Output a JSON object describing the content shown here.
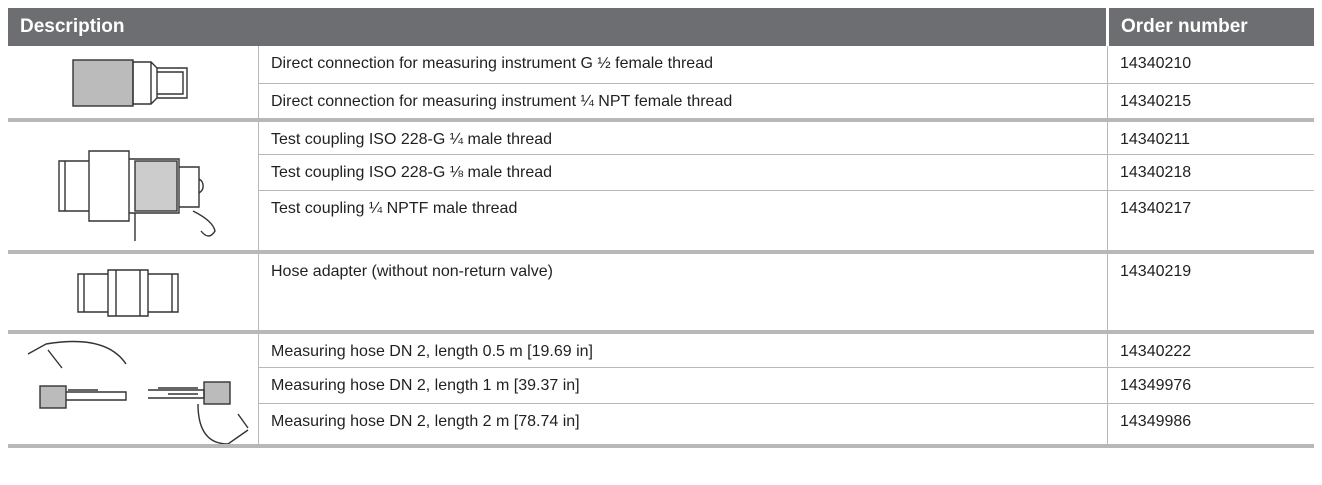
{
  "header": {
    "description": "Description",
    "order_number": "Order number"
  },
  "groups": [
    {
      "rows": [
        [
          "Direct connection for measuring instrument G ½ female thread",
          "14340210"
        ],
        [
          "Direct connection for measuring instrument ¼ NPT female thread",
          "14340215"
        ]
      ]
    },
    {
      "rows": [
        [
          "Test coupling ISO 228-G ¼ male thread",
          "14340211"
        ],
        [
          "Test coupling ISO 228-G ⅛ male thread",
          "14340218"
        ],
        [
          "Test coupling ¼ NPTF male thread",
          "14340217"
        ]
      ]
    },
    {
      "rows": [
        [
          "Hose adapter (without non-return valve)",
          "14340219"
        ]
      ]
    },
    {
      "rows": [
        [
          "Measuring hose DN 2, length 0.5 m [19.69 in]",
          "14340222"
        ],
        [
          "Measuring hose DN 2, length 1 m [39.37 in]",
          "14349976"
        ],
        [
          "Measuring hose DN 2, length 2 m [78.74 in]",
          "14349986"
        ]
      ]
    }
  ]
}
